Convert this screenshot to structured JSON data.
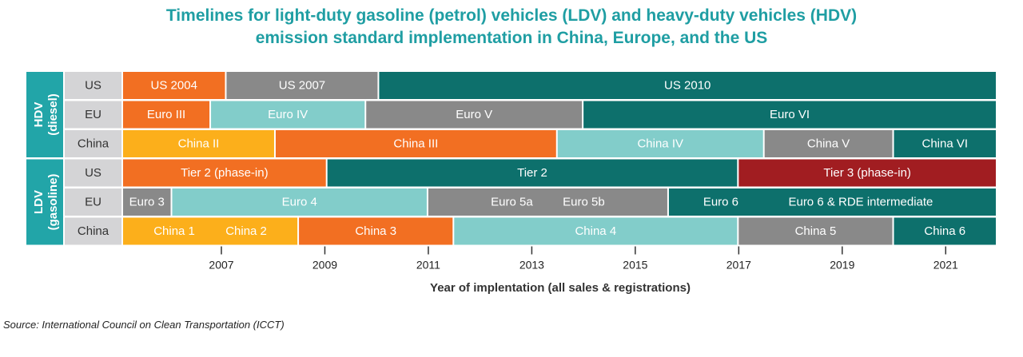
{
  "chart_data": {
    "type": "timeline",
    "title_lines": [
      "Timelines for light-duty gasoline (petrol) vehicles (LDV) and heavy-duty vehicles (HDV)",
      "emission standard implementation in China, Europe, and the US"
    ],
    "xlabel": "Year of implentation (all sales & registrations)",
    "xlim": [
      2005.1,
      2022.0
    ],
    "xticks": [
      2007,
      2009,
      2011,
      2013,
      2015,
      2017,
      2019,
      2021
    ],
    "colors": {
      "orange": "#f26f22",
      "gray": "#898989",
      "teal_dark": "#0d706c",
      "teal_light": "#82cdca",
      "yellow": "#fcaf1b",
      "red": "#a11d21",
      "group_bg": "#22a5a8",
      "region_bg": "#d4d4d6"
    },
    "groups": [
      {
        "label_lines": [
          "HDV",
          "(diesel)"
        ],
        "rows": [
          {
            "region": "US",
            "segments": [
              {
                "labels": [
                  "US 2004"
                ],
                "start": 2005.1,
                "end": 2007.1,
                "color": "orange"
              },
              {
                "labels": [
                  "US 2007"
                ],
                "start": 2007.1,
                "end": 2010.05,
                "color": "gray"
              },
              {
                "labels": [
                  "US 2010"
                ],
                "start": 2010.05,
                "end": 2022.0,
                "color": "teal_dark"
              }
            ]
          },
          {
            "region": "EU",
            "segments": [
              {
                "labels": [
                  "Euro III"
                ],
                "start": 2005.1,
                "end": 2006.8,
                "color": "orange"
              },
              {
                "labels": [
                  "Euro IV"
                ],
                "start": 2006.8,
                "end": 2009.8,
                "color": "teal_light"
              },
              {
                "labels": [
                  "Euro V"
                ],
                "start": 2009.8,
                "end": 2014.0,
                "color": "gray"
              },
              {
                "labels": [
                  "Euro VI"
                ],
                "start": 2014.0,
                "end": 2022.0,
                "color": "teal_dark"
              }
            ]
          },
          {
            "region": "China",
            "segments": [
              {
                "labels": [
                  "China II"
                ],
                "start": 2005.1,
                "end": 2008.05,
                "color": "yellow"
              },
              {
                "labels": [
                  "China III"
                ],
                "start": 2008.05,
                "end": 2013.5,
                "color": "orange"
              },
              {
                "labels": [
                  "China IV"
                ],
                "start": 2013.5,
                "end": 2017.5,
                "color": "teal_light"
              },
              {
                "labels": [
                  "China V"
                ],
                "start": 2017.5,
                "end": 2020.0,
                "color": "gray"
              },
              {
                "labels": [
                  "China VI"
                ],
                "start": 2020.0,
                "end": 2022.0,
                "color": "teal_dark"
              }
            ]
          }
        ]
      },
      {
        "label_lines": [
          "LDV",
          "(gasoline)"
        ],
        "rows": [
          {
            "region": "US",
            "segments": [
              {
                "labels": [
                  "Tier 2 (phase-in)"
                ],
                "start": 2005.1,
                "end": 2009.05,
                "color": "orange"
              },
              {
                "labels": [
                  "Tier 2"
                ],
                "start": 2009.05,
                "end": 2017.0,
                "color": "teal_dark"
              },
              {
                "labels": [
                  "Tier 3 (phase-in)"
                ],
                "start": 2017.0,
                "end": 2022.0,
                "color": "red"
              }
            ]
          },
          {
            "region": "EU",
            "segments": [
              {
                "labels": [
                  "Euro 3"
                ],
                "start": 2005.1,
                "end": 2006.05,
                "color": "gray"
              },
              {
                "labels": [
                  "Euro 4"
                ],
                "start": 2006.05,
                "end": 2011.0,
                "color": "teal_light"
              },
              {
                "labels": [
                  "Euro 5a",
                  "Euro 5b"
                ],
                "start": 2011.0,
                "end": 2015.65,
                "color": "gray"
              },
              {
                "labels": [
                  "Euro 6",
                  "Euro 6 & RDE intermediate"
                ],
                "start": 2015.65,
                "end": 2022.0,
                "color": "teal_dark"
              }
            ]
          },
          {
            "region": "China",
            "segments": [
              {
                "labels": [
                  "China 1",
                  "China 2"
                ],
                "start": 2005.1,
                "end": 2008.5,
                "color": "yellow"
              },
              {
                "labels": [
                  "China 3"
                ],
                "start": 2008.5,
                "end": 2011.5,
                "color": "orange"
              },
              {
                "labels": [
                  "China 4"
                ],
                "start": 2011.5,
                "end": 2017.0,
                "color": "teal_light"
              },
              {
                "labels": [
                  "China 5"
                ],
                "start": 2017.0,
                "end": 2020.0,
                "color": "gray"
              },
              {
                "labels": [
                  "China 6"
                ],
                "start": 2020.0,
                "end": 2022.0,
                "color": "teal_dark"
              }
            ]
          }
        ]
      }
    ],
    "source": "Source: International Council on Clean Transportation (ICCT)"
  }
}
